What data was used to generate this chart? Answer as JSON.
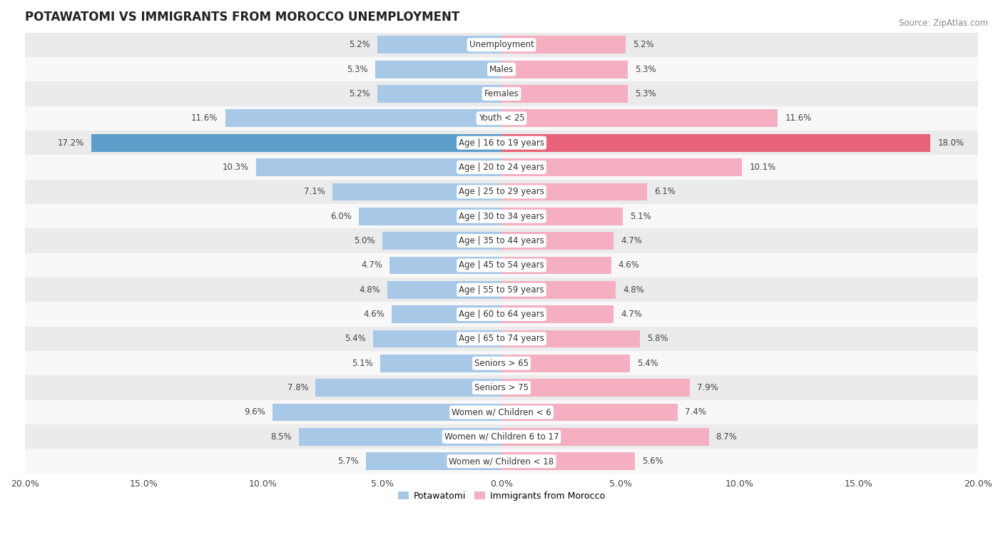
{
  "title": "POTAWATOMI VS IMMIGRANTS FROM MOROCCO UNEMPLOYMENT",
  "source": "Source: ZipAtlas.com",
  "categories": [
    "Unemployment",
    "Males",
    "Females",
    "Youth < 25",
    "Age | 16 to 19 years",
    "Age | 20 to 24 years",
    "Age | 25 to 29 years",
    "Age | 30 to 34 years",
    "Age | 35 to 44 years",
    "Age | 45 to 54 years",
    "Age | 55 to 59 years",
    "Age | 60 to 64 years",
    "Age | 65 to 74 years",
    "Seniors > 65",
    "Seniors > 75",
    "Women w/ Children < 6",
    "Women w/ Children 6 to 17",
    "Women w/ Children < 18"
  ],
  "potawatomi": [
    5.2,
    5.3,
    5.2,
    11.6,
    17.2,
    10.3,
    7.1,
    6.0,
    5.0,
    4.7,
    4.8,
    4.6,
    5.4,
    5.1,
    7.8,
    9.6,
    8.5,
    5.7
  ],
  "morocco": [
    5.2,
    5.3,
    5.3,
    11.6,
    18.0,
    10.1,
    6.1,
    5.1,
    4.7,
    4.6,
    4.8,
    4.7,
    5.8,
    5.4,
    7.9,
    7.4,
    8.7,
    5.6
  ],
  "potawatomi_color": "#a8c8e8",
  "morocco_color": "#f4afc0",
  "potawatomi_highlight_color": "#5b9ec9",
  "morocco_highlight_color": "#e8637a",
  "row_bg_light": "#ebebeb",
  "row_bg_white": "#f8f8f8",
  "bar_height": 0.72,
  "xlim": 20.0,
  "title_fontsize": 12,
  "source_fontsize": 8.5,
  "category_fontsize": 8.5,
  "value_fontsize": 8.5,
  "legend_label_potawatomi": "Potawatomi",
  "legend_label_morocco": "Immigrants from Morocco",
  "tick_fontsize": 9
}
